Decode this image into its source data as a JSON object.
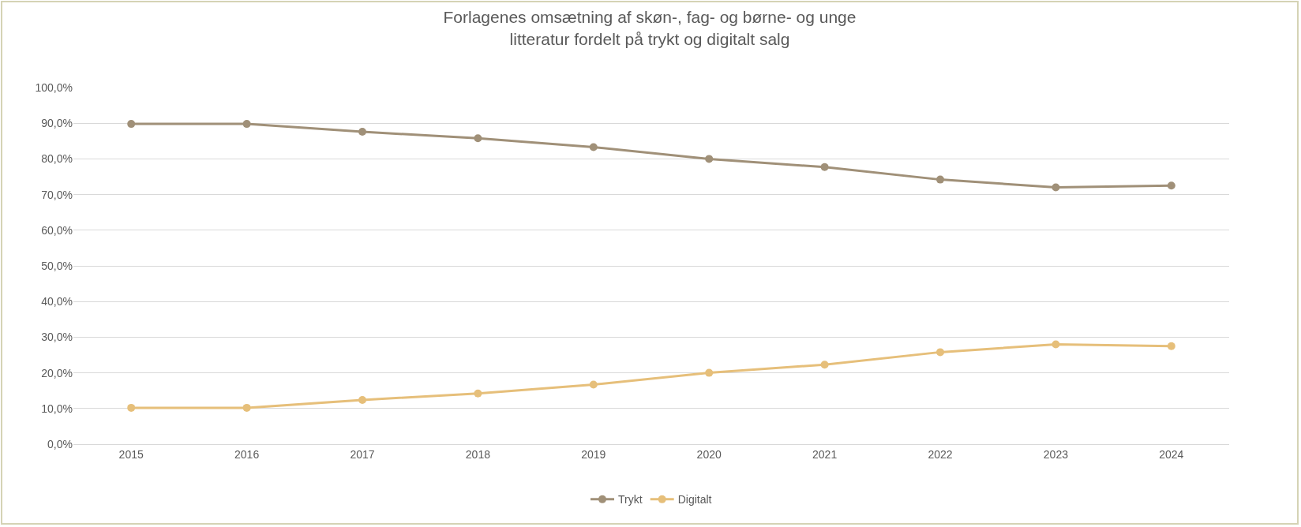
{
  "chart_data": {
    "type": "line",
    "title": "Forlagenes omsætning af skøn-, fag- og børne- og unge\nlitteratur fordelt på trykt og digitalt salg",
    "categories": [
      "2015",
      "2016",
      "2017",
      "2018",
      "2019",
      "2020",
      "2021",
      "2022",
      "2023",
      "2024"
    ],
    "series": [
      {
        "name": "Trykt",
        "color": "#a09078",
        "values": [
          89.8,
          89.8,
          87.6,
          85.8,
          83.3,
          80.0,
          77.7,
          74.2,
          72.0,
          72.5
        ]
      },
      {
        "name": "Digitalt",
        "color": "#e6bf7a",
        "values": [
          10.2,
          10.2,
          12.4,
          14.2,
          16.7,
          20.0,
          22.3,
          25.8,
          28.0,
          27.5
        ]
      }
    ],
    "ylim": [
      0,
      100
    ],
    "yticks": [
      {
        "value": 0,
        "label": "0,0%"
      },
      {
        "value": 10,
        "label": "10,0%"
      },
      {
        "value": 20,
        "label": "20,0%"
      },
      {
        "value": 30,
        "label": "30,0%"
      },
      {
        "value": 40,
        "label": "40,0%"
      },
      {
        "value": 50,
        "label": "50,0%"
      },
      {
        "value": 60,
        "label": "60,0%"
      },
      {
        "value": 70,
        "label": "70,0%"
      },
      {
        "value": 80,
        "label": "80,0%"
      },
      {
        "value": 90,
        "label": "90,0%"
      },
      {
        "value": 100,
        "label": "100,0%"
      }
    ],
    "grid": "y",
    "legend": "bottom",
    "marker": "circle",
    "line_style": "solid"
  }
}
